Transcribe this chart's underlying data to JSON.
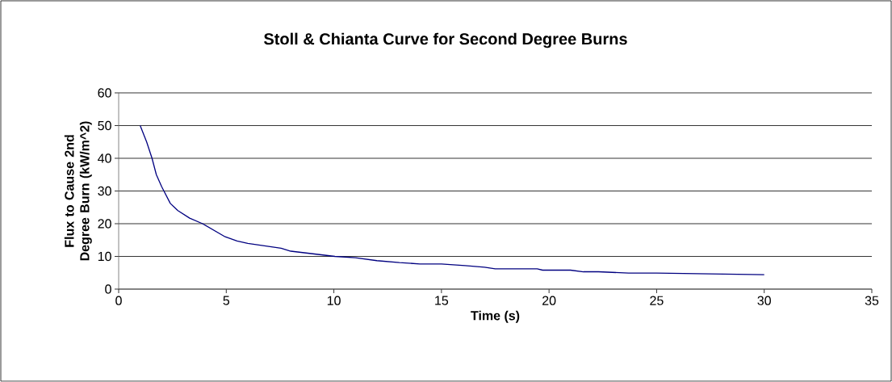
{
  "chart_data": {
    "type": "line",
    "title": "Stoll & Chianta Curve for Second Degree Burns",
    "xlabel": "Time (s)",
    "ylabel": "Flux to Cause 2nd Degree Burn  (kW/m^2)",
    "x": [
      1.0,
      1.3,
      1.55,
      1.75,
      2.0,
      2.4,
      2.75,
      3.3,
      3.9,
      4.95,
      5.5,
      6.0,
      7.55,
      8.0,
      10.05,
      11.0,
      12.0,
      13.05,
      14.0,
      15.0,
      16.1,
      17.0,
      17.5,
      19.45,
      19.7,
      21.0,
      21.6,
      22.3,
      23.7,
      25.0,
      30.0
    ],
    "series": [
      {
        "color": "#000080",
        "values": [
          50,
          45,
          40,
          35,
          31.3,
          26.2,
          24,
          21.7,
          20,
          16,
          14.7,
          14,
          12.5,
          11.6,
          10,
          9.6,
          8.7,
          8.1,
          7.7,
          7.7,
          7.2,
          6.7,
          6.2,
          6.2,
          5.8,
          5.8,
          5.3,
          5.3,
          4.9,
          4.9,
          4.4
        ]
      }
    ],
    "xlim": [
      0,
      35
    ],
    "ylim": [
      0,
      60
    ],
    "xticks": [
      0,
      5,
      10,
      15,
      20,
      25,
      30,
      35
    ],
    "yticks": [
      0,
      10,
      20,
      30,
      40,
      50,
      60
    ],
    "grid": "y",
    "marker": "none",
    "line_style": "solid"
  }
}
